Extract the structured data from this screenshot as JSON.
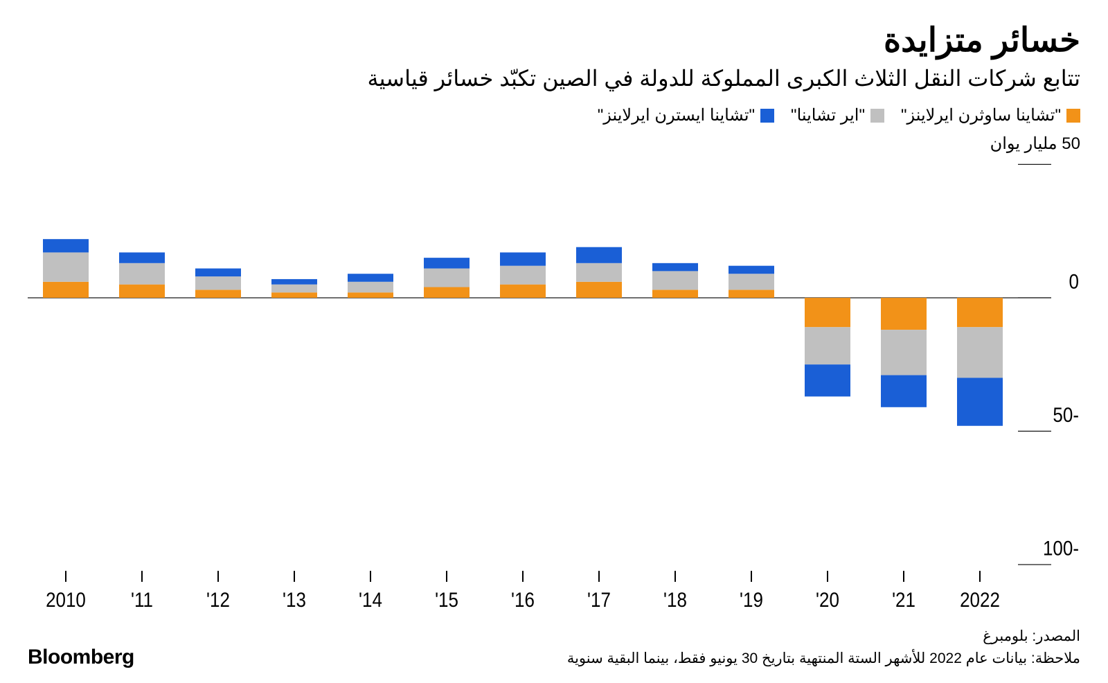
{
  "title": "خسائر متزايدة",
  "subtitle": "تتابع شركات النقل الثلاث الكبرى المملوكة للدولة في الصين تكبّد خسائر قياسية",
  "legend": [
    {
      "label": "\"تشاينا ساوثرن ايرلاينز\"",
      "color": "#f29218"
    },
    {
      "label": "\"اير تشاينا\"",
      "color": "#c0c0c0"
    },
    {
      "label": "\"تشاينا ايسترن ايرلاينز\"",
      "color": "#1a5fd6"
    }
  ],
  "y_axis_unit": "50 مليار يوان",
  "footer": {
    "source": "المصدر: بلومبرغ",
    "note": "ملاحظة: بيانات عام 2022 للأشهر الستة المنتهية بتاريخ 30 يونيو فقط، بينما البقية سنوية",
    "logo": "Bloomberg"
  },
  "chart": {
    "type": "stacked-bar",
    "background_color": "#ffffff",
    "text_color": "#000000",
    "axis_color": "#000000",
    "tick_color": "#000000",
    "axis_fontsize": 26,
    "bar_group_width": 0.6,
    "y": {
      "min": -100,
      "max": 50,
      "ticks": [
        -100,
        -50,
        0,
        50
      ],
      "tick_labels": [
        "100-",
        "50-",
        "0",
        ""
      ],
      "top_tick_label_replaced_by_unit": true
    },
    "x": {
      "labels": [
        "2010",
        "'11",
        "'12",
        "'13",
        "'14",
        "'15",
        "'16",
        "'17",
        "'18",
        "'19",
        "'20",
        "'21",
        "2022"
      ]
    },
    "series_colors": {
      "southern": "#f29218",
      "air_china": "#c0c0c0",
      "eastern": "#1a5fd6"
    },
    "series_order_positive_top_to_bottom": [
      "eastern",
      "air_china",
      "southern"
    ],
    "series_order_negative_top_to_bottom": [
      "southern",
      "air_china",
      "eastern"
    ],
    "data": [
      {
        "year": "2010",
        "southern": 6,
        "air_china": 11,
        "eastern": 5
      },
      {
        "year": "2011",
        "southern": 5,
        "air_china": 8,
        "eastern": 4
      },
      {
        "year": "2012",
        "southern": 3,
        "air_china": 5,
        "eastern": 3
      },
      {
        "year": "2013",
        "southern": 2,
        "air_china": 3,
        "eastern": 2
      },
      {
        "year": "2014",
        "southern": 2,
        "air_china": 4,
        "eastern": 3
      },
      {
        "year": "2015",
        "southern": 4,
        "air_china": 7,
        "eastern": 4
      },
      {
        "year": "2016",
        "southern": 5,
        "air_china": 7,
        "eastern": 5
      },
      {
        "year": "2017",
        "southern": 6,
        "air_china": 7,
        "eastern": 6
      },
      {
        "year": "2018",
        "southern": 3,
        "air_china": 7,
        "eastern": 3
      },
      {
        "year": "2019",
        "southern": 3,
        "air_china": 6,
        "eastern": 3
      },
      {
        "year": "2020",
        "southern": -11,
        "air_china": -14,
        "eastern": -12
      },
      {
        "year": "2021",
        "southern": -12,
        "air_china": -17,
        "eastern": -12
      },
      {
        "year": "2022",
        "southern": -11,
        "air_china": -19,
        "eastern": -18
      }
    ]
  }
}
